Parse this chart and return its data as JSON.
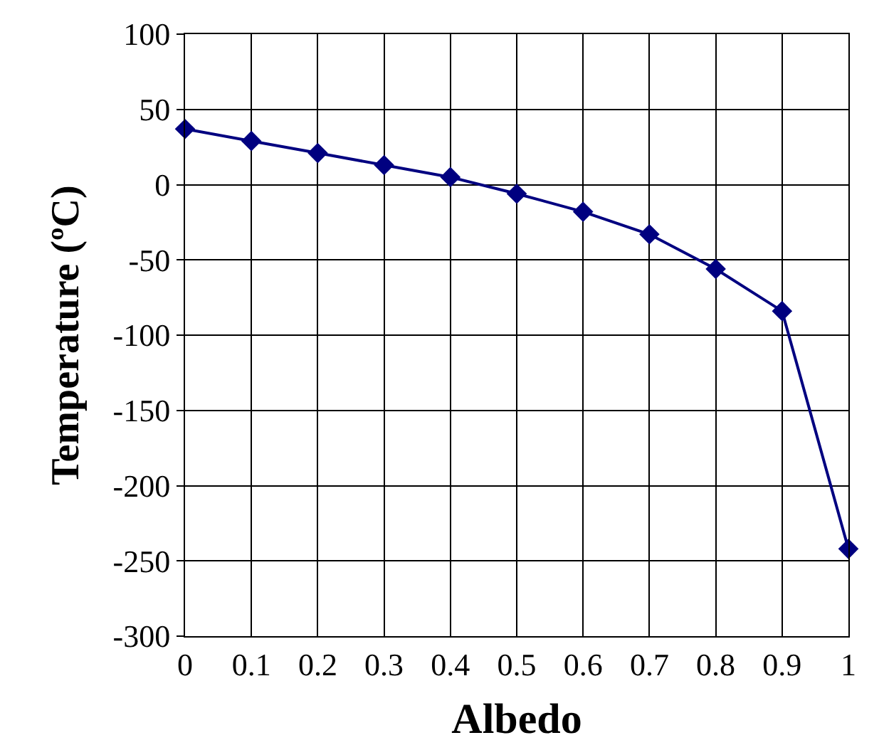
{
  "chart_data": {
    "type": "line",
    "xlabel": "Albedo",
    "ylabel": "Temperature (ºC)",
    "x": [
      0,
      0.1,
      0.2,
      0.3,
      0.4,
      0.5,
      0.6,
      0.7,
      0.8,
      0.9,
      1
    ],
    "series": [
      {
        "color": "#000080",
        "values": [
          37,
          29,
          21,
          13,
          5,
          -6,
          -18,
          -33,
          -56,
          -84,
          -242
        ]
      }
    ],
    "xlim": [
      0,
      1
    ],
    "xticks": [
      0,
      0.1,
      0.2,
      0.3,
      0.4,
      0.5,
      0.6,
      0.7,
      0.8,
      0.9,
      1
    ],
    "ylim": [
      -300,
      100
    ],
    "yticks": [
      -300,
      -250,
      -200,
      -150,
      -100,
      -50,
      0,
      50,
      100
    ],
    "grid": true,
    "marker": "diamond",
    "line_style": "solid"
  }
}
